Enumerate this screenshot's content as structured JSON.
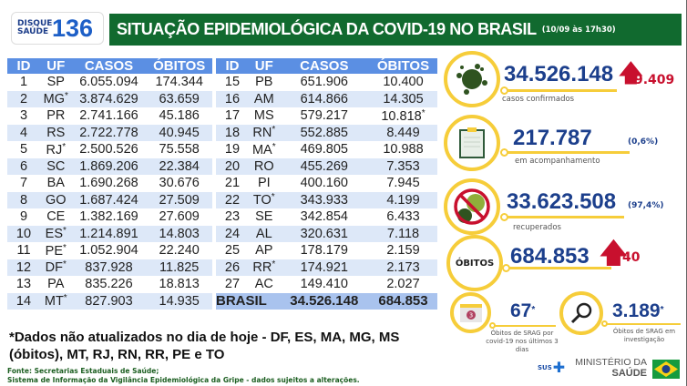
{
  "header": {
    "logo_top": "DISQUE",
    "logo_bottom": "SAÚDE",
    "logo_number": "136",
    "title": "SITUAÇÃO EPIDEMIOLÓGICA DA COVID-19 NO BRASIL",
    "date": "(10/09 às 17h30)"
  },
  "table": {
    "columns": [
      "ID",
      "UF",
      "CASOS",
      "ÓBITOS"
    ],
    "left_rows": [
      [
        "1",
        "SP",
        "6.055.094",
        "174.344",
        ""
      ],
      [
        "2",
        "MG",
        "3.874.629",
        "63.659",
        "uf"
      ],
      [
        "3",
        "PR",
        "2.741.166",
        "45.186",
        ""
      ],
      [
        "4",
        "RS",
        "2.722.778",
        "40.945",
        ""
      ],
      [
        "5",
        "RJ",
        "2.500.526",
        "75.558",
        "uf"
      ],
      [
        "6",
        "SC",
        "1.869.206",
        "22.384",
        ""
      ],
      [
        "7",
        "BA",
        "1.690.268",
        "30.676",
        ""
      ],
      [
        "8",
        "GO",
        "1.687.424",
        "27.509",
        ""
      ],
      [
        "9",
        "CE",
        "1.382.169",
        "27.609",
        ""
      ],
      [
        "10",
        "ES",
        "1.214.891",
        "14.803",
        "uf"
      ],
      [
        "11",
        "PE",
        "1.052.904",
        "22.240",
        "uf"
      ],
      [
        "12",
        "DF",
        "837.928",
        "11.825",
        "uf"
      ],
      [
        "13",
        "PA",
        "835.226",
        "18.813",
        ""
      ],
      [
        "14",
        "MT",
        "827.903",
        "14.935",
        "uf"
      ]
    ],
    "right_rows": [
      [
        "15",
        "PB",
        "651.906",
        "10.400",
        ""
      ],
      [
        "16",
        "AM",
        "614.866",
        "14.305",
        ""
      ],
      [
        "17",
        "MS",
        "579.217",
        "10.818",
        "obitos"
      ],
      [
        "18",
        "RN",
        "552.885",
        "8.449",
        "uf"
      ],
      [
        "19",
        "MA",
        "469.805",
        "10.988",
        "uf"
      ],
      [
        "20",
        "RO",
        "455.269",
        "7.353",
        ""
      ],
      [
        "21",
        "PI",
        "400.160",
        "7.945",
        ""
      ],
      [
        "22",
        "TO",
        "343.933",
        "4.199",
        "uf"
      ],
      [
        "23",
        "SE",
        "342.854",
        "6.433",
        ""
      ],
      [
        "24",
        "AL",
        "320.631",
        "7.118",
        ""
      ],
      [
        "25",
        "AP",
        "178.179",
        "2.159",
        ""
      ],
      [
        "26",
        "RR",
        "174.921",
        "2.173",
        "uf"
      ],
      [
        "27",
        "AC",
        "149.410",
        "2.027",
        ""
      ]
    ],
    "total": {
      "label": "BRASIL",
      "casos": "34.526.148",
      "obitos": "684.853"
    },
    "asterisk": "*"
  },
  "stats": {
    "confirmed": {
      "value": "34.526.148",
      "increase": "9.409",
      "label": "casos confirmados",
      "icon": "virus-icon"
    },
    "monitoring": {
      "value": "217.787",
      "percent": "(0,6%)",
      "label": "em acompanhamento",
      "icon": "clipboard-icon"
    },
    "recovered": {
      "value": "33.623.508",
      "percent": "(97,4%)",
      "label": "recuperados",
      "icon": "no-virus-icon"
    },
    "deaths": {
      "badge": "ÓBITOS",
      "value": "684.853",
      "increase": "40"
    },
    "srag_recent": {
      "value": "67",
      "asterisk": "*",
      "label": "Óbitos de SRAG por covid-19 nos últimos 3 dias",
      "calendar_number": "3"
    },
    "srag_investigation": {
      "value": "3.189",
      "asterisk": "*",
      "label": "Óbitos de SRAG em investigação"
    }
  },
  "footer": {
    "note_line1": "*Dados não atualizados no dia de hoje - DF, ES, MA, MG, MS",
    "note_line2": "(óbitos), MT, RJ, RN, RR, PE e TO",
    "source_line1": "Fonte: Secretarias Estaduais de Saúde;",
    "source_line2": "Sistema de Informação da Vigilância Epidemiológica da Gripe - dados sujeitos a alterações.",
    "sus": "SUS",
    "ministry_line1": "MINISTÉRIO DA",
    "ministry_line2": "SAÚDE"
  },
  "colors": {
    "title_green": "#116a2f",
    "header_blue": "#5b8fe3",
    "row_alt": "#dde8f8",
    "number_navy": "#1c3f8c",
    "accent_yellow": "#f6cd3a",
    "increase_red": "#c8102e"
  }
}
